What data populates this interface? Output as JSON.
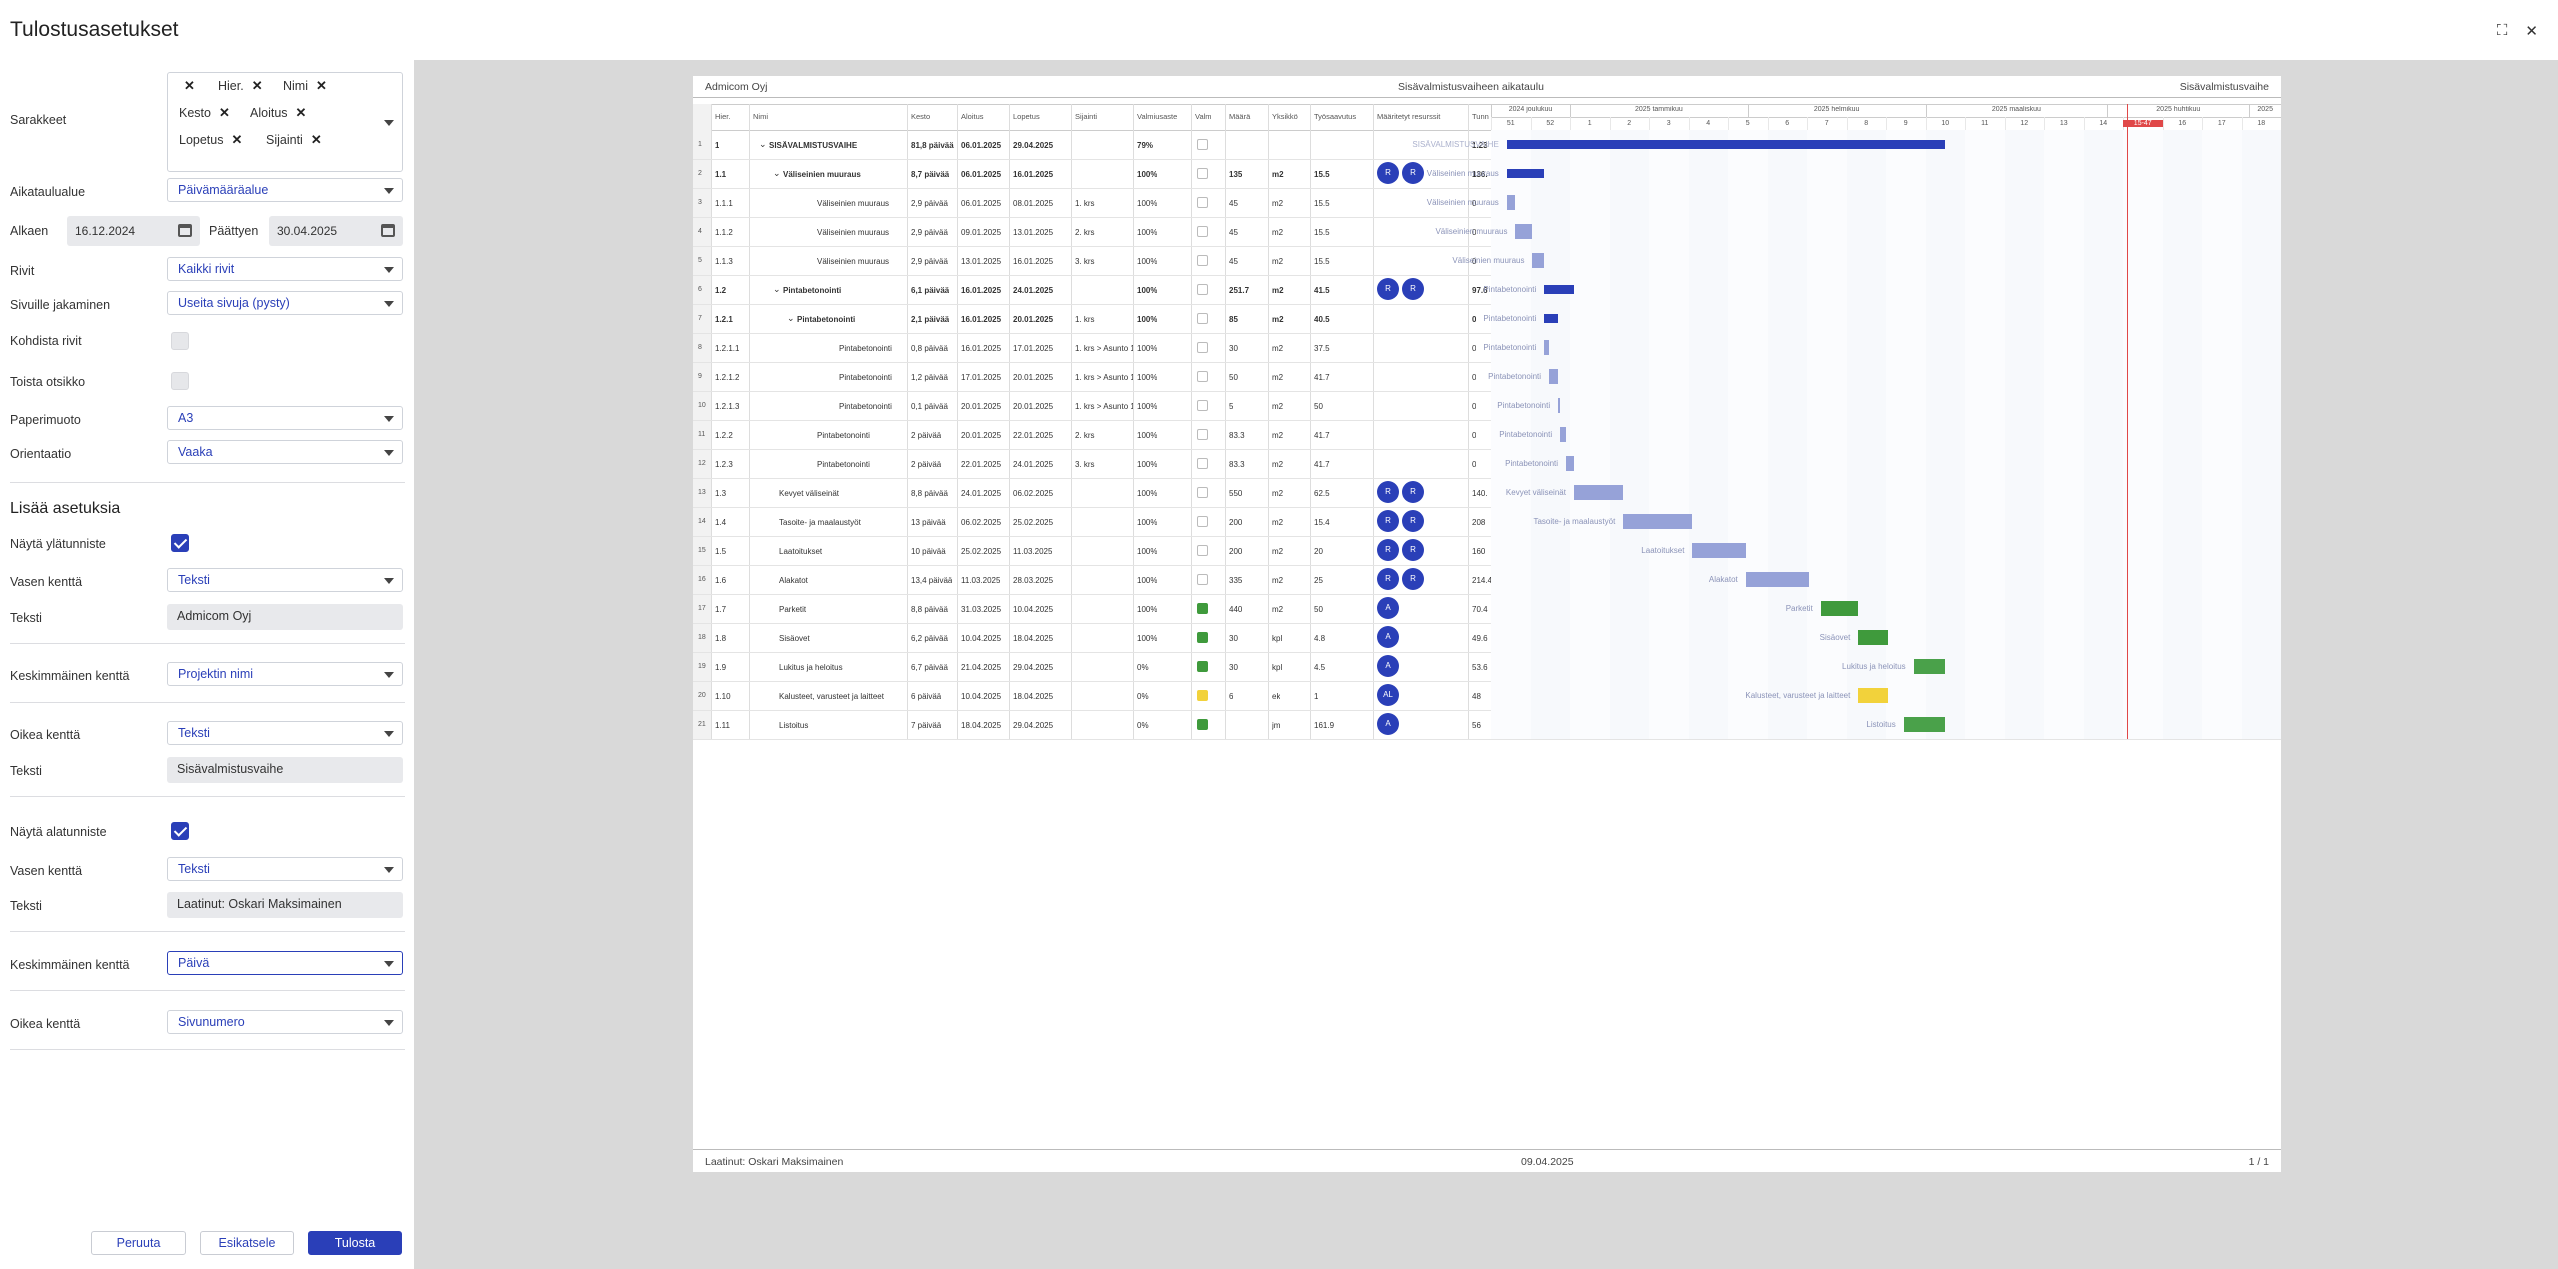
{
  "dialog": {
    "title": "Tulostusasetukset"
  },
  "settings": {
    "columns_label": "Sarakkeet",
    "columns_tags": [
      "Hier.",
      "Nimi",
      "Kesto",
      "Aloitus",
      "Lopetus",
      "Sijainti"
    ],
    "schedule_area_label": "Aikataulualue",
    "schedule_area_value": "Päivämääräalue",
    "start_label": "Alkaen",
    "start_value": "16.12.2024",
    "end_label": "Päättyen",
    "end_value": "30.04.2025",
    "rows_label": "Rivit",
    "rows_value": "Kaikki rivit",
    "pages_label": "Sivuille jakaminen",
    "pages_value": "Useita sivuja (pysty)",
    "fit_rows_label": "Kohdista rivit",
    "repeat_title_label": "Toista otsikko",
    "paper_label": "Paperimuoto",
    "paper_value": "A3",
    "orientation_label": "Orientaatio",
    "orientation_value": "Vaaka"
  },
  "more": {
    "title": "Lisää asetuksia",
    "show_header_label": "Näytä ylätunniste",
    "header_left_label": "Vasen kenttä",
    "header_left_value": "Teksti",
    "header_left_text_label": "Teksti",
    "header_left_text": "Admicom Oyj",
    "header_mid_label": "Keskimmäinen kenttä",
    "header_mid_value": "Projektin nimi",
    "header_right_label": "Oikea kenttä",
    "header_right_value": "Teksti",
    "header_right_text_label": "Teksti",
    "header_right_text": "Sisävalmistusvaihe",
    "show_footer_label": "Näytä alatunniste",
    "footer_left_label": "Vasen kenttä",
    "footer_left_value": "Teksti",
    "footer_left_text_label": "Teksti",
    "footer_left_text": "Laatinut: Oskari Maksimainen",
    "footer_mid_label": "Keskimmäinen kenttä",
    "footer_mid_value": "Päivä",
    "footer_right_label": "Oikea kenttä",
    "footer_right_value": "Sivunumero"
  },
  "buttons": {
    "cancel": "Peruuta",
    "preview": "Esikatsele",
    "print": "Tulosta"
  },
  "preview": {
    "header_left": "Admicom Oyj",
    "header_center": "Sisävalmistusvaiheen aikataulu",
    "header_right": "Sisävalmistusvaihe",
    "footer_left": "Laatinut: Oskari Maksimainen",
    "footer_center": "09.04.2025",
    "footer_right": "1 / 1",
    "columns": [
      "Hier.",
      "Nimi",
      "Kesto",
      "Aloitus",
      "Lopetus",
      "Sijainti",
      "Valmiusaste",
      "Valm",
      "Määrä",
      "Yksikkö",
      "Työsaavutus",
      "Määritetyt resurssit",
      "Tunn"
    ],
    "months": [
      "2024 joulukuu",
      "2025 tammikuu",
      "2025 helmikuu",
      "2025 maaliskuu",
      "2025 huhtikuu",
      "2025"
    ],
    "weeks": [
      "51",
      "52",
      "1",
      "2",
      "3",
      "4",
      "5",
      "6",
      "7",
      "8",
      "9",
      "10",
      "11",
      "12",
      "13",
      "14",
      "15-47",
      "16",
      "17",
      "18"
    ],
    "today_week": "15-47",
    "rows": [
      {
        "n": "1",
        "h": "1",
        "name": "SISÄVALMISTUSVAIHE",
        "dur": "81,8 päivää",
        "start": "06.01.2025",
        "end": "29.04.2025",
        "loc": "",
        "pct": "79%",
        "m": "",
        "qty": "",
        "unit": "",
        "work": "",
        "res": [],
        "tun": "1.23",
        "bold": true,
        "lvl": 0,
        "exp": true
      },
      {
        "n": "2",
        "h": "1.1",
        "name": "Väliseinien muuraus",
        "dur": "8,7 päivää",
        "start": "06.01.2025",
        "end": "16.01.2025",
        "loc": "",
        "pct": "100%",
        "m": "",
        "qty": "135",
        "unit": "m2",
        "work": "15.5",
        "res": [
          "R",
          "R"
        ],
        "tun": "136.",
        "bold": true,
        "lvl": 1,
        "exp": true
      },
      {
        "n": "3",
        "h": "1.1.1",
        "name": "Väliseinien muuraus",
        "dur": "2,9 päivää",
        "start": "06.01.2025",
        "end": "08.01.2025",
        "loc": "1. krs",
        "pct": "100%",
        "m": "",
        "qty": "45",
        "unit": "m2",
        "work": "15.5",
        "res": [],
        "tun": "0",
        "lvl": 2
      },
      {
        "n": "4",
        "h": "1.1.2",
        "name": "Väliseinien muuraus",
        "dur": "2,9 päivää",
        "start": "09.01.2025",
        "end": "13.01.2025",
        "loc": "2. krs",
        "pct": "100%",
        "m": "",
        "qty": "45",
        "unit": "m2",
        "work": "15.5",
        "res": [],
        "tun": "0",
        "lvl": 2
      },
      {
        "n": "5",
        "h": "1.1.3",
        "name": "Väliseinien muuraus",
        "dur": "2,9 päivää",
        "start": "13.01.2025",
        "end": "16.01.2025",
        "loc": "3. krs",
        "pct": "100%",
        "m": "",
        "qty": "45",
        "unit": "m2",
        "work": "15.5",
        "res": [],
        "tun": "0",
        "lvl": 2
      },
      {
        "n": "6",
        "h": "1.2",
        "name": "Pintabetonointi",
        "dur": "6,1 päivää",
        "start": "16.01.2025",
        "end": "24.01.2025",
        "loc": "",
        "pct": "100%",
        "m": "",
        "qty": "251.7",
        "unit": "m2",
        "work": "41.5",
        "res": [
          "R",
          "R"
        ],
        "tun": "97.6",
        "bold": true,
        "lvl": 1,
        "exp": true
      },
      {
        "n": "7",
        "h": "1.2.1",
        "name": "Pintabetonointi",
        "dur": "2,1 päivää",
        "start": "16.01.2025",
        "end": "20.01.2025",
        "loc": "1. krs",
        "pct": "100%",
        "m": "",
        "qty": "85",
        "unit": "m2",
        "work": "40.5",
        "res": [],
        "tun": "0",
        "bold": true,
        "lvl": 2,
        "exp": true
      },
      {
        "n": "8",
        "h": "1.2.1.1",
        "name": "Pintabetonointi",
        "dur": "0,8 päivää",
        "start": "16.01.2025",
        "end": "17.01.2025",
        "loc": "1. krs > Asunto 1",
        "pct": "100%",
        "m": "",
        "qty": "30",
        "unit": "m2",
        "work": "37.5",
        "res": [],
        "tun": "0",
        "lvl": 3
      },
      {
        "n": "9",
        "h": "1.2.1.2",
        "name": "Pintabetonointi",
        "dur": "1,2 päivää",
        "start": "17.01.2025",
        "end": "20.01.2025",
        "loc": "1. krs > Asunto 1",
        "pct": "100%",
        "m": "",
        "qty": "50",
        "unit": "m2",
        "work": "41.7",
        "res": [],
        "tun": "0",
        "lvl": 3
      },
      {
        "n": "10",
        "h": "1.2.1.3",
        "name": "Pintabetonointi",
        "dur": "0,1 päivää",
        "start": "20.01.2025",
        "end": "20.01.2025",
        "loc": "1. krs > Asunto 1",
        "pct": "100%",
        "m": "",
        "qty": "5",
        "unit": "m2",
        "work": "50",
        "res": [],
        "tun": "0",
        "lvl": 3
      },
      {
        "n": "11",
        "h": "1.2.2",
        "name": "Pintabetonointi",
        "dur": "2 päivää",
        "start": "20.01.2025",
        "end": "22.01.2025",
        "loc": "2. krs",
        "pct": "100%",
        "m": "",
        "qty": "83.3",
        "unit": "m2",
        "work": "41.7",
        "res": [],
        "tun": "0",
        "lvl": 2
      },
      {
        "n": "12",
        "h": "1.2.3",
        "name": "Pintabetonointi",
        "dur": "2 päivää",
        "start": "22.01.2025",
        "end": "24.01.2025",
        "loc": "3. krs",
        "pct": "100%",
        "m": "",
        "qty": "83.3",
        "unit": "m2",
        "work": "41.7",
        "res": [],
        "tun": "0",
        "lvl": 2
      },
      {
        "n": "13",
        "h": "1.3",
        "name": "Kevyet väliseinät",
        "dur": "8,8 päivää",
        "start": "24.01.2025",
        "end": "06.02.2025",
        "loc": "",
        "pct": "100%",
        "m": "",
        "qty": "550",
        "unit": "m2",
        "work": "62.5",
        "res": [
          "R",
          "R"
        ],
        "tun": "140.",
        "lvl": 1
      },
      {
        "n": "14",
        "h": "1.4",
        "name": "Tasoite- ja maalaustyöt",
        "dur": "13 päivää",
        "start": "06.02.2025",
        "end": "25.02.2025",
        "loc": "",
        "pct": "100%",
        "m": "",
        "qty": "200",
        "unit": "m2",
        "work": "15.4",
        "res": [
          "R",
          "R"
        ],
        "tun": "208",
        "lvl": 1
      },
      {
        "n": "15",
        "h": "1.5",
        "name": "Laatoitukset",
        "dur": "10 päivää",
        "start": "25.02.2025",
        "end": "11.03.2025",
        "loc": "",
        "pct": "100%",
        "m": "",
        "qty": "200",
        "unit": "m2",
        "work": "20",
        "res": [
          "R",
          "R"
        ],
        "tun": "160",
        "lvl": 1
      },
      {
        "n": "16",
        "h": "1.6",
        "name": "Alakatot",
        "dur": "13,4 päivää",
        "start": "11.03.2025",
        "end": "28.03.2025",
        "loc": "",
        "pct": "100%",
        "m": "",
        "qty": "335",
        "unit": "m2",
        "work": "25",
        "res": [
          "R",
          "R"
        ],
        "tun": "214.4",
        "lvl": 1
      },
      {
        "n": "17",
        "h": "1.7",
        "name": "Parketit",
        "dur": "8,8 päivää",
        "start": "31.03.2025",
        "end": "10.04.2025",
        "loc": "",
        "pct": "100%",
        "m": "g",
        "qty": "440",
        "unit": "m2",
        "work": "50",
        "res": [
          "A"
        ],
        "tun": "70.4",
        "lvl": 1
      },
      {
        "n": "18",
        "h": "1.8",
        "name": "Sisäovet",
        "dur": "6,2 päivää",
        "start": "10.04.2025",
        "end": "18.04.2025",
        "loc": "",
        "pct": "100%",
        "m": "g",
        "qty": "30",
        "unit": "kpl",
        "work": "4.8",
        "res": [
          "A"
        ],
        "tun": "49.6",
        "lvl": 1
      },
      {
        "n": "19",
        "h": "1.9",
        "name": "Lukitus ja heloitus",
        "dur": "6,7 päivää",
        "start": "21.04.2025",
        "end": "29.04.2025",
        "loc": "",
        "pct": "0%",
        "m": "g",
        "qty": "30",
        "unit": "kpl",
        "work": "4.5",
        "res": [
          "A"
        ],
        "tun": "53.6",
        "lvl": 1
      },
      {
        "n": "20",
        "h": "1.10",
        "name": "Kalusteet, varusteet ja laitteet",
        "dur": "6 päivää",
        "start": "10.04.2025",
        "end": "18.04.2025",
        "loc": "",
        "pct": "0%",
        "m": "y",
        "qty": "6",
        "unit": "ek",
        "work": "1",
        "res": [
          "AL"
        ],
        "tun": "48",
        "lvl": 1
      },
      {
        "n": "21",
        "h": "1.11",
        "name": "Listoitus",
        "dur": "7 päivää",
        "start": "18.04.2025",
        "end": "29.04.2025",
        "loc": "",
        "pct": "0%",
        "m": "g",
        "qty": "",
        "unit": "jm",
        "work": "161.9",
        "res": [
          "A"
        ],
        "tun": "56",
        "lvl": 1
      }
    ],
    "bars": [
      {
        "label": "SISÄVALMISTUSVAIHE",
        "s": 0.4,
        "e": 11.5,
        "c": "#2a3fb8",
        "sum": true
      },
      {
        "label": "Väliseinien muuraus",
        "s": 0.4,
        "e": 1.35,
        "c": "#2a3fb8",
        "sum": true
      },
      {
        "label": "Väliseinien muuraus",
        "s": 0.4,
        "e": 0.62,
        "c": "#96a2d8"
      },
      {
        "label": "Väliseinien muuraus",
        "s": 0.62,
        "e": 1.05,
        "c": "#96a2d8"
      },
      {
        "label": "Väliseinien muuraus",
        "s": 1.05,
        "e": 1.35,
        "c": "#96a2d8"
      },
      {
        "label": "Pintabetonointi",
        "s": 1.35,
        "e": 2.1,
        "c": "#2a3fb8",
        "sum": true
      },
      {
        "label": "Pintabetonointi",
        "s": 1.35,
        "e": 1.7,
        "c": "#2a3fb8",
        "sum": true
      },
      {
        "label": "Pintabetonointi",
        "s": 1.35,
        "e": 1.47,
        "c": "#96a2d8"
      },
      {
        "label": "Pintabetonointi",
        "s": 1.47,
        "e": 1.7,
        "c": "#96a2d8"
      },
      {
        "label": "Pintabetonointi",
        "s": 1.7,
        "e": 1.75,
        "c": "#96a2d8"
      },
      {
        "label": "Pintabetonointi",
        "s": 1.75,
        "e": 1.9,
        "c": "#96a2d8"
      },
      {
        "label": "Pintabetonointi",
        "s": 1.9,
        "e": 2.1,
        "c": "#96a2d8"
      },
      {
        "label": "Kevyet väliseinät",
        "s": 2.1,
        "e": 3.35,
        "c": "#96a2d8"
      },
      {
        "label": "Tasoite- ja maalaustyöt",
        "s": 3.35,
        "e": 5.1,
        "c": "#96a2d8"
      },
      {
        "label": "Laatoitukset",
        "s": 5.1,
        "e": 6.45,
        "c": "#96a2d8"
      },
      {
        "label": "Alakatot",
        "s": 6.45,
        "e": 8.05,
        "c": "#96a2d8"
      },
      {
        "label": "Parketit",
        "s": 8.35,
        "e": 9.3,
        "c": "#3f9a3c"
      },
      {
        "label": "Sisäovet",
        "s": 9.3,
        "e": 10.05,
        "c": "#3f9a3c"
      },
      {
        "label": "Lukitus ja heloitus",
        "s": 10.7,
        "e": 11.5,
        "c": "#4aa14a"
      },
      {
        "label": "Kalusteet, varusteet ja laitteet",
        "s": 9.3,
        "e": 10.05,
        "c": "#f2d23b"
      },
      {
        "label": "Listoitus",
        "s": 10.45,
        "e": 11.5,
        "c": "#4aa14a"
      }
    ]
  }
}
